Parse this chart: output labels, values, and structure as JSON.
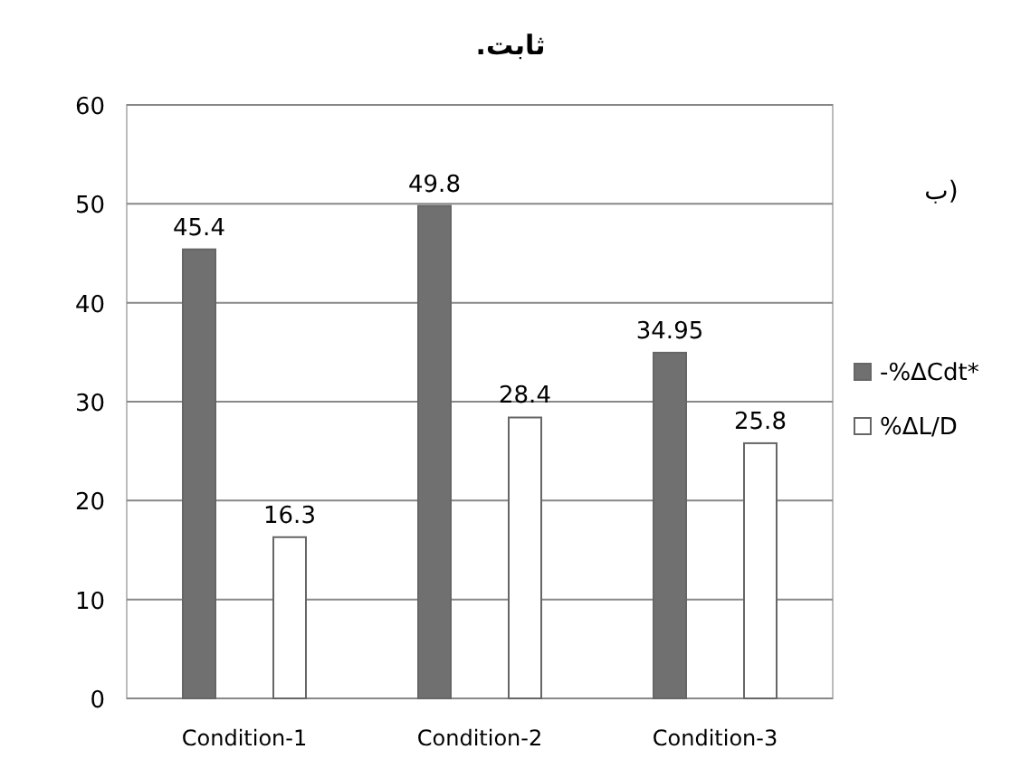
{
  "chart_data": {
    "type": "bar",
    "title": "ثابت.",
    "annotations": [
      "ب)"
    ],
    "categories": [
      "Condition-1",
      "Condition-2",
      "Condition-3"
    ],
    "series": [
      {
        "name": "-%ΔCdt*",
        "color": "#707070",
        "values": [
          45.4,
          49.8,
          34.95
        ]
      },
      {
        "name": "%ΔL/D",
        "color": "#ffffff",
        "values": [
          16.3,
          28.4,
          25.8
        ]
      }
    ],
    "ylim": [
      0,
      60
    ],
    "yticks": [
      0,
      10,
      20,
      30,
      40,
      50,
      60
    ],
    "grid": "y",
    "legend": "right",
    "data_labels": true
  }
}
